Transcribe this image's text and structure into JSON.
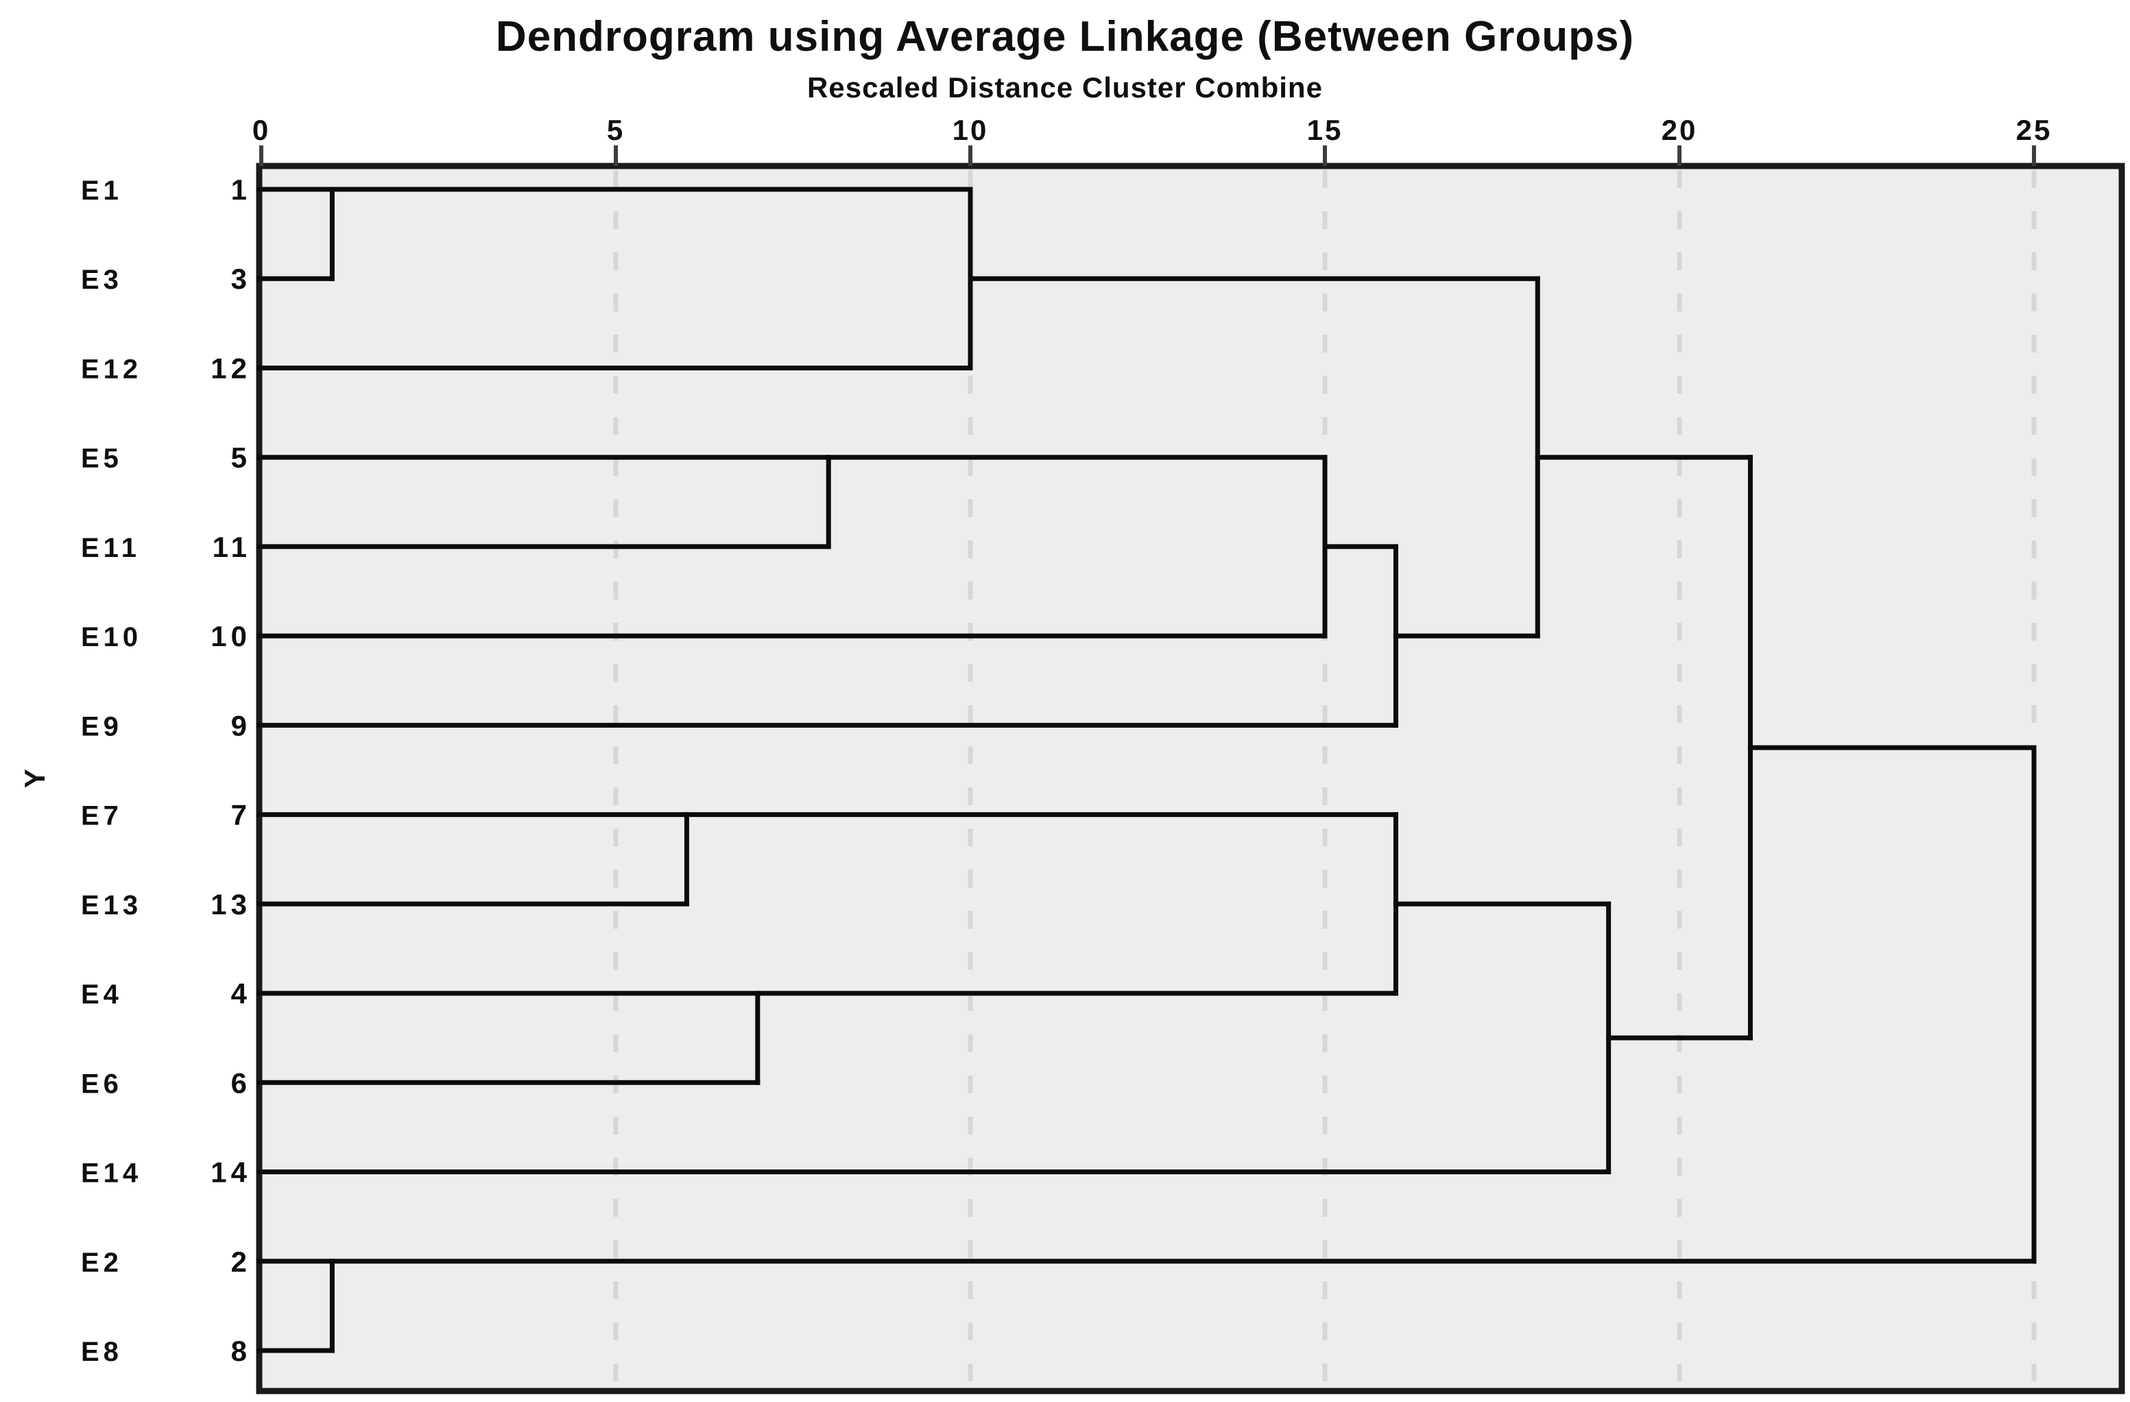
{
  "chart_data": {
    "type": "dendrogram",
    "orientation": "horizontal",
    "title": "Dendrogram using Average Linkage (Between Groups)",
    "subtitle": "Rescaled Distance Cluster Combine",
    "y_axis_label": "Y",
    "x_axis": {
      "min": 0,
      "max": 25,
      "ticks": [
        0,
        5,
        10,
        15,
        20,
        25
      ],
      "gridlines": [
        5,
        10,
        15,
        20,
        25
      ],
      "grid_style": "dashed"
    },
    "leaves": [
      {
        "label": "E1",
        "case": "1"
      },
      {
        "label": "E3",
        "case": "3"
      },
      {
        "label": "E12",
        "case": "12"
      },
      {
        "label": "E5",
        "case": "5"
      },
      {
        "label": "E11",
        "case": "11"
      },
      {
        "label": "E10",
        "case": "10"
      },
      {
        "label": "E9",
        "case": "9"
      },
      {
        "label": "E7",
        "case": "7"
      },
      {
        "label": "E13",
        "case": "13"
      },
      {
        "label": "E4",
        "case": "4"
      },
      {
        "label": "E6",
        "case": "6"
      },
      {
        "label": "E14",
        "case": "14"
      },
      {
        "label": "E2",
        "case": "2"
      },
      {
        "label": "E8",
        "case": "8"
      }
    ],
    "merges": [
      {
        "a": "L0",
        "b": "L1",
        "distance": 1
      },
      {
        "a": "L12",
        "b": "L13",
        "distance": 1
      },
      {
        "a": "L7",
        "b": "L8",
        "distance": 6
      },
      {
        "a": "L9",
        "b": "L10",
        "distance": 7
      },
      {
        "a": "L3",
        "b": "L4",
        "distance": 8
      },
      {
        "a": "M0",
        "b": "L2",
        "distance": 10
      },
      {
        "a": "M4",
        "b": "L5",
        "distance": 15
      },
      {
        "a": "M6",
        "b": "L6",
        "distance": 16
      },
      {
        "a": "M2",
        "b": "M3",
        "distance": 16
      },
      {
        "a": "M5",
        "b": "M7",
        "distance": 18
      },
      {
        "a": "M8",
        "b": "L11",
        "distance": 19
      },
      {
        "a": "M9",
        "b": "M10",
        "distance": 21
      },
      {
        "a": "M11",
        "b": "M1",
        "distance": 25
      }
    ],
    "colors": {
      "plot_background": "#ededed",
      "frame": "#1b1b1b",
      "line": "#0b0b0b",
      "grid": "#d7d7d7",
      "tick": "#3d3d3d",
      "text": "#0f0f0f"
    }
  }
}
